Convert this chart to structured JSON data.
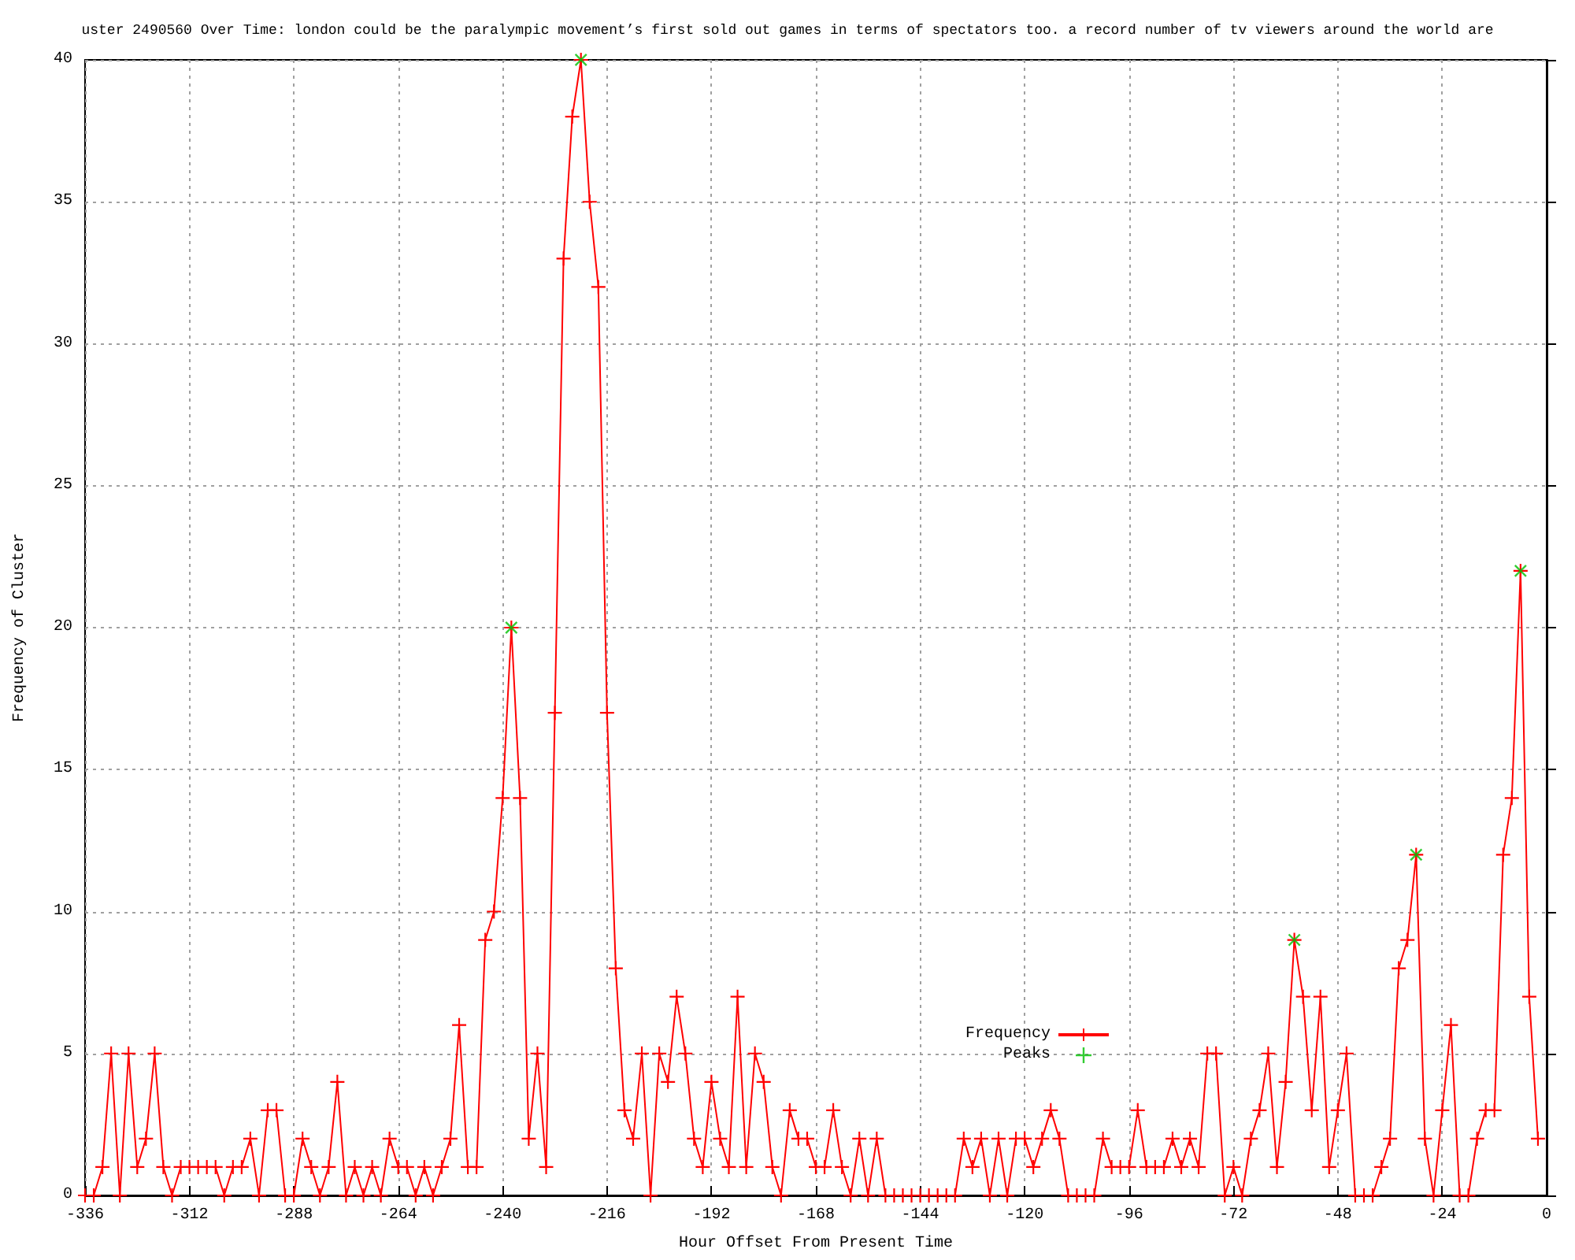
{
  "chart_data": {
    "type": "line",
    "title": "uster 2490560 Over Time: london could be the paralympic movement’s first sold out games in terms of spectators too. a record number of tv viewers around the world are",
    "xlabel": "Hour Offset From Present Time",
    "ylabel": "Frequency of Cluster",
    "xlim": [
      -336,
      0
    ],
    "xticks": [
      -336,
      -312,
      -288,
      -264,
      -240,
      -216,
      -192,
      -168,
      -144,
      -120,
      -96,
      -72,
      -48,
      -24,
      0
    ],
    "ylim": [
      0,
      40
    ],
    "yticks": [
      0,
      5,
      10,
      15,
      20,
      25,
      30,
      35,
      40
    ],
    "grid": true,
    "legend": "bottom right",
    "series": [
      {
        "name": "Frequency",
        "color": "#ff0000",
        "marker": "cross",
        "x": [
          -336,
          -334,
          -332,
          -330,
          -328,
          -326,
          -324,
          -322,
          -320,
          -318,
          -316,
          -314,
          -312,
          -310,
          -308,
          -306,
          -304,
          -302,
          -300,
          -298,
          -296,
          -294,
          -292,
          -290,
          -288,
          -286,
          -284,
          -282,
          -280,
          -278,
          -276,
          -274,
          -272,
          -270,
          -268,
          -266,
          -264,
          -262,
          -260,
          -258,
          -256,
          -254,
          -252,
          -250,
          -248,
          -246,
          -244,
          -242,
          -240,
          -238,
          -236,
          -234,
          -232,
          -230,
          -228,
          -226,
          -224,
          -222,
          -220,
          -218,
          -216,
          -214,
          -212,
          -210,
          -208,
          -206,
          -204,
          -202,
          -200,
          -198,
          -196,
          -194,
          -192,
          -190,
          -188,
          -186,
          -184,
          -182,
          -180,
          -178,
          -176,
          -174,
          -172,
          -170,
          -168,
          -166,
          -164,
          -162,
          -160,
          -158,
          -156,
          -154,
          -152,
          -150,
          -148,
          -146,
          -144,
          -142,
          -140,
          -138,
          -136,
          -134,
          -132,
          -130,
          -128,
          -126,
          -124,
          -122,
          -120,
          -118,
          -116,
          -114,
          -112,
          -110,
          -108,
          -106,
          -104,
          -102,
          -100,
          -98,
          -96,
          -94,
          -92,
          -90,
          -88,
          -86,
          -84,
          -82,
          -80,
          -78,
          -76,
          -74,
          -72,
          -70,
          -68,
          -66,
          -64,
          -62,
          -60,
          -58,
          -56,
          -54,
          -52,
          -50,
          -48,
          -46,
          -44,
          -42,
          -40,
          -38,
          -36,
          -34,
          -32,
          -30,
          -28,
          -26,
          -24,
          -22,
          -20,
          -18,
          -16,
          -14,
          -12,
          -10,
          -8,
          -6,
          -4,
          -2
        ],
        "values": [
          0,
          0,
          1,
          5,
          0,
          5,
          1,
          2,
          5,
          1,
          0,
          1,
          1,
          1,
          1,
          1,
          0,
          1,
          1,
          2,
          0,
          3,
          3,
          0,
          0,
          2,
          1,
          0,
          1,
          4,
          0,
          1,
          0,
          1,
          0,
          2,
          1,
          1,
          0,
          1,
          0,
          1,
          2,
          6,
          1,
          1,
          9,
          10,
          14,
          20,
          14,
          2,
          5,
          1,
          17,
          33,
          38,
          40,
          35,
          32,
          17,
          8,
          3,
          2,
          5,
          0,
          5,
          4,
          7,
          5,
          2,
          1,
          4,
          2,
          1,
          7,
          1,
          5,
          4,
          1,
          0,
          3,
          2,
          2,
          1,
          1,
          3,
          1,
          0,
          2,
          0,
          2,
          0,
          0,
          0,
          0,
          0,
          0,
          0,
          0,
          0,
          2,
          1,
          2,
          0,
          2,
          0,
          2,
          2,
          1,
          2,
          3,
          2,
          0,
          0,
          0,
          0,
          2,
          1,
          1,
          1,
          3,
          1,
          1,
          1,
          2,
          1,
          2,
          1,
          5,
          5,
          0,
          1,
          0,
          2,
          3,
          5,
          1,
          4,
          9,
          7,
          3,
          7,
          1,
          3,
          5,
          0,
          0,
          0,
          1,
          2,
          8,
          9,
          12,
          2,
          0,
          3,
          6,
          0,
          0,
          2,
          3,
          3,
          12,
          14,
          22,
          7,
          2
        ]
      },
      {
        "name": "Peaks",
        "type": "scatter",
        "color": "#00c000",
        "marker": "cross",
        "x": [
          -238,
          -222,
          -58,
          -30,
          -6
        ],
        "values": [
          20,
          40,
          9,
          12,
          22
        ]
      }
    ]
  }
}
